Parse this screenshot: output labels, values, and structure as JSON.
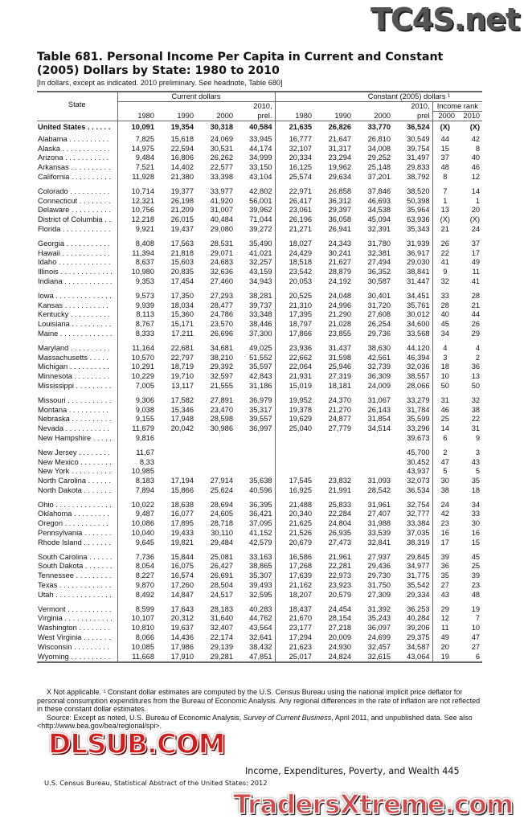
{
  "title": "Table 681. Personal Income Per Capita in Current and Constant (2005) Dollars by State: 1980 to 2010",
  "subtitle": "[In dollars, except as indicated. 2010 preliminary. See headnote, Table 680]",
  "header": {
    "state": "State",
    "current": "Current dollars",
    "constant": "Constant (2005) dollars ¹",
    "rank": "Income rank",
    "cur_years": [
      "1980",
      "1990",
      "2000",
      "2010,",
      "prel."
    ],
    "con_years": [
      "1980",
      "1990",
      "2000",
      "2010,",
      "prel"
    ],
    "rank_years": [
      "2000",
      "2010"
    ]
  },
  "us_row": [
    "United States",
    "10,091",
    "19,354",
    "30,318",
    "40,584",
    "21,635",
    "26,826",
    "33,770",
    "36,524",
    "(X)",
    "(X)"
  ],
  "groups": [
    [
      [
        "Alabama",
        "7,825",
        "15,618",
        "24,069",
        "33,945",
        "16,777",
        "21,647",
        "26,810",
        "30,549",
        "44",
        "42"
      ],
      [
        "Alaska",
        "14,975",
        "22,594",
        "30,531",
        "44,174",
        "32,107",
        "31,317",
        "34,008",
        "39,754",
        "15",
        "8"
      ],
      [
        "Arizona",
        "9,484",
        "16,806",
        "26,262",
        "34,999",
        "20,334",
        "23,294",
        "29,252",
        "31,497",
        "37",
        "40"
      ],
      [
        "Arkansas",
        "7,521",
        "14,402",
        "22,577",
        "33,150",
        "16,125",
        "19,962",
        "25,148",
        "29,833",
        "48",
        "46"
      ],
      [
        "California",
        "11,928",
        "21,380",
        "33,398",
        "43,104",
        "25,574",
        "29,634",
        "37,201",
        "38,792",
        "8",
        "12"
      ]
    ],
    [
      [
        "Colorado",
        "10,714",
        "19,377",
        "33,977",
        "42,802",
        "22,971",
        "26,858",
        "37,846",
        "38,520",
        "7",
        "14"
      ],
      [
        "Connecticut",
        "12,321",
        "26,198",
        "41,920",
        "56,001",
        "26,417",
        "36,312",
        "46,693",
        "50,398",
        "1",
        "1"
      ],
      [
        "Delaware",
        "10,756",
        "21,209",
        "31,007",
        "39,962",
        "23,061",
        "29,397",
        "34,538",
        "35,964",
        "13",
        "20"
      ],
      [
        "District of Columbia",
        "12,218",
        "26,015",
        "40,484",
        "71,044",
        "26,196",
        "36,058",
        "45,094",
        "63,936",
        "(X)",
        "(X)"
      ],
      [
        "Florida",
        "9,921",
        "19,437",
        "29,080",
        "39,272",
        "21,271",
        "26,941",
        "32,391",
        "35,343",
        "21",
        "24"
      ]
    ],
    [
      [
        "Georgia",
        "8,408",
        "17,563",
        "28,531",
        "35,490",
        "18,027",
        "24,343",
        "31,780",
        "31,939",
        "26",
        "37"
      ],
      [
        "Hawaii",
        "11,394",
        "21,818",
        "29,071",
        "41,021",
        "24,429",
        "30,241",
        "32,381",
        "36,917",
        "22",
        "17"
      ],
      [
        "Idaho",
        "8,637",
        "15,603",
        "24,683",
        "32,257",
        "18,518",
        "21,627",
        "27,494",
        "29,030",
        "41",
        "49"
      ],
      [
        "Illinois",
        "10,980",
        "20,835",
        "32,636",
        "43,159",
        "23,542",
        "28,879",
        "36,352",
        "38,841",
        "9",
        "11"
      ],
      [
        "Indiana",
        "9,353",
        "17,454",
        "27,460",
        "34,943",
        "20,053",
        "24,192",
        "30,587",
        "31,447",
        "32",
        "41"
      ]
    ],
    [
      [
        "Iowa",
        "9,573",
        "17,350",
        "27,293",
        "38,281",
        "20,525",
        "24,048",
        "30,401",
        "34,451",
        "33",
        "28"
      ],
      [
        "Kansas",
        "9,939",
        "18,034",
        "28,477",
        "39,737",
        "21,310",
        "24,996",
        "31,720",
        "35,761",
        "28",
        "21"
      ],
      [
        "Kentucky",
        "8,113",
        "15,360",
        "24,786",
        "33,348",
        "17,395",
        "21,290",
        "27,608",
        "30,012",
        "40",
        "44"
      ],
      [
        "Louisiana",
        "8,767",
        "15,171",
        "23,570",
        "38,446",
        "18,797",
        "21,028",
        "26,254",
        "34,600",
        "45",
        "26"
      ],
      [
        "Maine",
        "8,333",
        "17,211",
        "26,696",
        "37,300",
        "17,866",
        "23,855",
        "29,736",
        "33,568",
        "34",
        "29"
      ]
    ],
    [
      [
        "Maryland",
        "11,164",
        "22,681",
        "34,681",
        "49,025",
        "23,936",
        "31,437",
        "38,630",
        "44,120",
        "4",
        "4"
      ],
      [
        "Massachusetts",
        "10,570",
        "22,797",
        "38,210",
        "51,552",
        "22,662",
        "31,598",
        "42,561",
        "46,394",
        "3",
        "2"
      ],
      [
        "Michigan",
        "10,291",
        "18,719",
        "29,392",
        "35,597",
        "22,064",
        "25,946",
        "32,739",
        "32,036",
        "18",
        "36"
      ],
      [
        "Minnesota",
        "10,229",
        "19,710",
        "32,597",
        "42,843",
        "21,931",
        "27,319",
        "36,309",
        "38,557",
        "10",
        "13"
      ],
      [
        "Mississippi",
        "7,005",
        "13,117",
        "21,555",
        "31,186",
        "15,019",
        "18,181",
        "24,009",
        "28,066",
        "50",
        "50"
      ]
    ],
    [
      [
        "Missouri",
        "9,306",
        "17,582",
        "27,891",
        "36,979",
        "19,952",
        "24,370",
        "31,067",
        "33,279",
        "31",
        "32"
      ],
      [
        "Montana",
        "9,038",
        "15,346",
        "23,470",
        "35,317",
        "19,378",
        "21,270",
        "26,143",
        "31,784",
        "46",
        "38"
      ],
      [
        "Nebraska",
        "9,155",
        "17,948",
        "28,598",
        "39,557",
        "19,629",
        "24,877",
        "31,854",
        "35,599",
        "25",
        "22"
      ],
      [
        "Nevada",
        "11,679",
        "20,042",
        "30,986",
        "36,997",
        "25,040",
        "27,779",
        "34,514",
        "33,296",
        "14",
        "31"
      ],
      [
        "New Hampshire",
        "9,816",
        "",
        "",
        "",
        "",
        "",
        "",
        "39,673",
        "6",
        "9"
      ]
    ],
    [
      [
        "New Jersey",
        "11,67",
        "",
        "",
        "",
        "",
        "",
        "",
        "45,700",
        "2",
        "3"
      ],
      [
        "New Mexico",
        "8,33",
        "",
        "",
        "",
        "",
        "",
        "",
        "30,452",
        "47",
        "43"
      ],
      [
        "New York",
        "10,985",
        "",
        "",
        "",
        "",
        "",
        "",
        "43,937",
        "5",
        "5"
      ],
      [
        "North Carolina",
        "8,183",
        "17,194",
        "27,914",
        "35,638",
        "17,545",
        "23,832",
        "31,093",
        "32,073",
        "30",
        "35"
      ],
      [
        "North Dakota",
        "7,894",
        "15,866",
        "25,624",
        "40,596",
        "16,925",
        "21,991",
        "28,542",
        "36,534",
        "38",
        "18"
      ]
    ],
    [
      [
        "Ohio",
        "10,022",
        "18,638",
        "28,694",
        "36,395",
        "21,488",
        "25,833",
        "31,961",
        "32,754",
        "24",
        "34"
      ],
      [
        "Oklahoma",
        "9,487",
        "16,077",
        "24,605",
        "36,421",
        "20,340",
        "22,284",
        "27,407",
        "32,777",
        "42",
        "33"
      ],
      [
        "Oregon",
        "10,086",
        "17,895",
        "28,718",
        "37,095",
        "21,625",
        "24,804",
        "31,988",
        "33,384",
        "23",
        "30"
      ],
      [
        "Pennsylvania",
        "10,040",
        "19,433",
        "30,110",
        "41,152",
        "21,526",
        "26,935",
        "33,539",
        "37,035",
        "16",
        "16"
      ],
      [
        "Rhode Island",
        "9,645",
        "19,821",
        "29,484",
        "42,579",
        "20,679",
        "27,473",
        "32,841",
        "38,319",
        "17",
        "15"
      ]
    ],
    [
      [
        "South Carolina",
        "7,736",
        "15,844",
        "25,081",
        "33,163",
        "16,586",
        "21,961",
        "27,937",
        "29,845",
        "39",
        "45"
      ],
      [
        "South Dakota",
        "8,054",
        "16,075",
        "26,427",
        "38,865",
        "17,268",
        "22,281",
        "29,436",
        "34,977",
        "36",
        "25"
      ],
      [
        "Tennessee",
        "8,227",
        "16,574",
        "26,691",
        "35,307",
        "17,639",
        "22,973",
        "29,730",
        "31,775",
        "35",
        "39"
      ],
      [
        "Texas",
        "9,870",
        "17,260",
        "28,504",
        "39,493",
        "21,162",
        "23,923",
        "31,750",
        "35,542",
        "27",
        "23"
      ],
      [
        "Utah",
        "8,492",
        "14,847",
        "24,517",
        "32,595",
        "18,207",
        "20,579",
        "27,309",
        "29,334",
        "43",
        "48"
      ]
    ],
    [
      [
        "Vermont",
        "8,599",
        "17,643",
        "28,183",
        "40,283",
        "18,437",
        "24,454",
        "31,392",
        "36,253",
        "29",
        "19"
      ],
      [
        "Virginia",
        "10,107",
        "20,312",
        "31,640",
        "44,762",
        "21,670",
        "28,154",
        "35,243",
        "40,284",
        "12",
        "7"
      ],
      [
        "Washington",
        "10,810",
        "19,637",
        "32,407",
        "43,564",
        "23,177",
        "27,218",
        "36,097",
        "39,206",
        "11",
        "10"
      ],
      [
        "West Virginia",
        "8,066",
        "14,436",
        "22,174",
        "32,641",
        "17,294",
        "20,009",
        "24,699",
        "29,375",
        "49",
        "47"
      ],
      [
        "Wisconsin",
        "10,085",
        "17,986",
        "29,139",
        "38,432",
        "21,623",
        "24,930",
        "32,457",
        "34,587",
        "20",
        "27"
      ],
      [
        "Wyoming",
        "11,668",
        "17,910",
        "29,281",
        "47,851",
        "25,017",
        "24,824",
        "32,615",
        "43,064",
        "19",
        "6"
      ]
    ]
  ],
  "footnotes": {
    "note1": "X Not applicable. ¹ Constant dollar estimates are computed by the U.S. Census Bureau using the national implicit price deflator for personal consumption expenditures from the Bureau of Economic Analysis. Any regional differences in the rate of inflation are not reflected in these constant dollar estimates.",
    "source_prefix": "Source: Except as noted, U.S. Bureau of Economic Analysis, ",
    "source_italic": "Survey of Current Business",
    "source_suffix": ", April 2011, and unpublished data. See also <http://www.bea.gov/bea/regional/spi>."
  },
  "page_header": "Income, Expenditures, Poverty, and Wealth  445",
  "page_source": "U.S. Census Bureau, Statistical Abstract of the United States: 2012",
  "watermarks": [
    "TC4S.net",
    "DLSUB.COM",
    "TradersXtreme.com"
  ]
}
